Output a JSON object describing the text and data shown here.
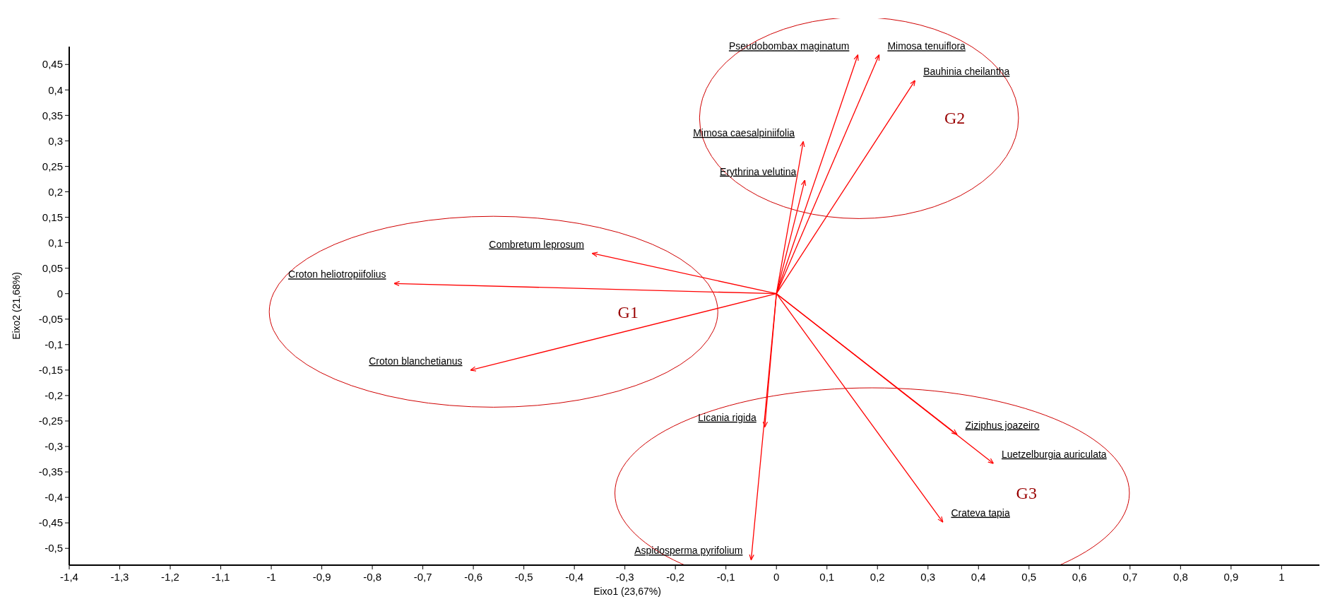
{
  "chart_data": {
    "type": "line",
    "xlabel": "Eixo1  (23,67%)",
    "ylabel": "Eixo2  (21,68%)",
    "xlim": [
      -1.4,
      1.075
    ],
    "ylim": [
      -0.533,
      0.485
    ],
    "xticks": [
      {
        "value": -1.4,
        "label": "-1,4"
      },
      {
        "value": -1.3,
        "label": "-1,3"
      },
      {
        "value": -1.2,
        "label": "-1,2"
      },
      {
        "value": -1.1,
        "label": "-1,1"
      },
      -1,
      {
        "value": -0.9,
        "label": "-0,9"
      },
      {
        "value": -0.8,
        "label": "-0,8"
      },
      {
        "value": -0.7,
        "label": "-0,7"
      },
      {
        "value": -0.6,
        "label": "-0,6"
      },
      {
        "value": -0.5,
        "label": "-0,5"
      },
      {
        "value": -0.4,
        "label": "-0,4"
      },
      {
        "value": -0.3,
        "label": "-0,3"
      },
      {
        "value": -0.2,
        "label": "-0,2"
      },
      {
        "value": -0.1,
        "label": "-0,1"
      },
      0,
      {
        "value": 0.1,
        "label": "0,1"
      },
      {
        "value": 0.2,
        "label": "0,2"
      },
      {
        "value": 0.3,
        "label": "0,3"
      },
      {
        "value": 0.4,
        "label": "0,4"
      },
      {
        "value": 0.5,
        "label": "0,5"
      },
      {
        "value": 0.6,
        "label": "0,6"
      },
      {
        "value": 0.7,
        "label": "0,7"
      },
      {
        "value": 0.8,
        "label": "0,8"
      },
      {
        "value": 0.9,
        "label": "0,9"
      },
      1
    ],
    "yticks": [
      {
        "value": -0.5,
        "label": "-0,5"
      },
      {
        "value": -0.45,
        "label": "-0,45"
      },
      {
        "value": -0.4,
        "label": "-0,4"
      },
      {
        "value": -0.35,
        "label": "-0,35"
      },
      {
        "value": -0.3,
        "label": "-0,3"
      },
      {
        "value": -0.25,
        "label": "-0,25"
      },
      {
        "value": -0.2,
        "label": "-0,2"
      },
      {
        "value": -0.15,
        "label": "-0,15"
      },
      {
        "value": -0.1,
        "label": "-0,1"
      },
      {
        "value": -0.05,
        "label": "-0,05"
      },
      0,
      {
        "value": 0.05,
        "label": "0,05"
      },
      {
        "value": 0.1,
        "label": "0,1"
      },
      {
        "value": 0.15,
        "label": "0,15"
      },
      {
        "value": 0.2,
        "label": "0,2"
      },
      {
        "value": 0.25,
        "label": "0,25"
      },
      {
        "value": 0.3,
        "label": "0,3"
      },
      {
        "value": 0.35,
        "label": "0,35"
      },
      {
        "value": 0.4,
        "label": "0,4"
      },
      {
        "value": 0.45,
        "label": "0,45"
      }
    ],
    "grid": false,
    "legend": false,
    "series": [
      {
        "name": "Pseudobombax maginatum",
        "color": "#ff0000",
        "x": [
          0,
          0.161
        ],
        "values": [
          0,
          0.468
        ]
      },
      {
        "name": "Mimosa tenuiflora",
        "color": "#ff0000",
        "x": [
          0,
          0.203
        ],
        "values": [
          0,
          0.468
        ]
      },
      {
        "name": "Bauhinia cheilantha",
        "color": "#ff0000",
        "x": [
          0,
          0.274
        ],
        "values": [
          0,
          0.418
        ]
      },
      {
        "name": "Mimosa caesalpiniifolia",
        "color": "#ff0000",
        "x": [
          0,
          0.053
        ],
        "values": [
          0,
          0.298
        ]
      },
      {
        "name": "Erythrina velutina",
        "color": "#ff0000",
        "x": [
          0,
          0.056
        ],
        "values": [
          0,
          0.222
        ]
      },
      {
        "name": "Combretum leprosum",
        "color": "#ff0000",
        "x": [
          0,
          -0.364
        ],
        "values": [
          0,
          0.079
        ]
      },
      {
        "name": "Croton heliotropiifolius",
        "color": "#ff0000",
        "x": [
          0,
          -0.756
        ],
        "values": [
          0,
          0.02
        ]
      },
      {
        "name": "Croton blanchetianus",
        "color": "#ff0000",
        "x": [
          0,
          -0.605
        ],
        "values": [
          0,
          -0.15
        ]
      },
      {
        "name": "Licania rigida",
        "color": "#ff0000",
        "x": [
          0,
          -0.023
        ],
        "values": [
          0,
          -0.261
        ]
      },
      {
        "name": "Aspidosperma pyrifolium",
        "color": "#ff0000",
        "x": [
          0,
          -0.05
        ],
        "values": [
          0,
          -0.522
        ]
      },
      {
        "name": "Ziziphus joazeiro",
        "color": "#ff0000",
        "x": [
          0,
          0.357
        ],
        "values": [
          0,
          -0.276
        ]
      },
      {
        "name": "Luetzelburgia auriculata",
        "color": "#ff0000",
        "x": [
          0,
          0.429
        ],
        "values": [
          0,
          -0.333
        ]
      },
      {
        "name": "Crateva tapia",
        "color": "#ff0000",
        "x": [
          0,
          0.329
        ],
        "values": [
          0,
          -0.448
        ]
      }
    ],
    "annotations": [
      "G1",
      "G2",
      "G3"
    ]
  }
}
